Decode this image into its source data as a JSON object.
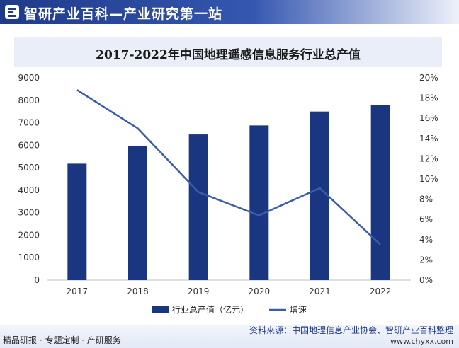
{
  "header": {
    "title": "智研产业百科—产业研究第一站",
    "logo_icon": "zhiyan-logo-icon"
  },
  "chart_data": {
    "type": "bar",
    "title": "2017-2022年中国地理遥感信息服务行业总产值",
    "categories": [
      "2017",
      "2018",
      "2019",
      "2020",
      "2021",
      "2022"
    ],
    "series": [
      {
        "name": "行业总产值（亿元）",
        "type": "bar",
        "axis": "left",
        "color": "#1b3680",
        "values": [
          5180,
          5980,
          6480,
          6880,
          7500,
          7780
        ]
      },
      {
        "name": "增速",
        "type": "line",
        "axis": "right",
        "color": "#3b5bab",
        "values": [
          18.8,
          15.0,
          8.7,
          6.4,
          9.1,
          3.5
        ]
      }
    ],
    "y_left": {
      "min": 0,
      "max": 9000,
      "step": 1000,
      "ticks": [
        "0",
        "1000",
        "2000",
        "3000",
        "4000",
        "5000",
        "6000",
        "7000",
        "8000",
        "9000"
      ]
    },
    "y_right": {
      "min": 0,
      "max": 20,
      "step": 2,
      "ticks": [
        "0%",
        "2%",
        "4%",
        "6%",
        "8%",
        "10%",
        "12%",
        "14%",
        "16%",
        "18%",
        "20%"
      ]
    },
    "grid": false,
    "legend": "bottom"
  },
  "footer": {
    "left_text": "精品研报 · 专题定制 · 产研服务",
    "source": "资料来源：中国地理信息产业协会、智研产业百科整理",
    "url": "www.chyxx.com"
  }
}
